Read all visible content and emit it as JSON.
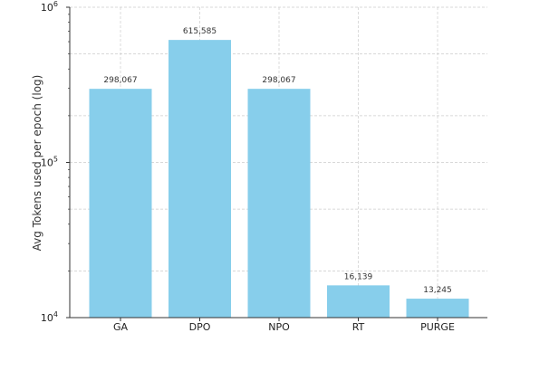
{
  "chart_data": {
    "type": "bar",
    "title": "",
    "xlabel": "",
    "ylabel": "Avg Tokens used per epoch (log)",
    "yscale": "log",
    "ylim": [
      10000,
      1000000
    ],
    "yticks": [
      {
        "base": "10",
        "exp": "4",
        "value": 10000
      },
      {
        "base": "10",
        "exp": "5",
        "value": 100000
      },
      {
        "base": "10",
        "exp": "6",
        "value": 1000000
      }
    ],
    "grid": true,
    "categories": [
      "GA",
      "DPO",
      "NPO",
      "RT",
      "PURGE"
    ],
    "values": [
      298067,
      615585,
      298067,
      16139,
      13245
    ],
    "labels": [
      "298,067",
      "615,585",
      "298,067",
      "16,139",
      "13,245"
    ],
    "bar_color": "#87CEEB"
  }
}
